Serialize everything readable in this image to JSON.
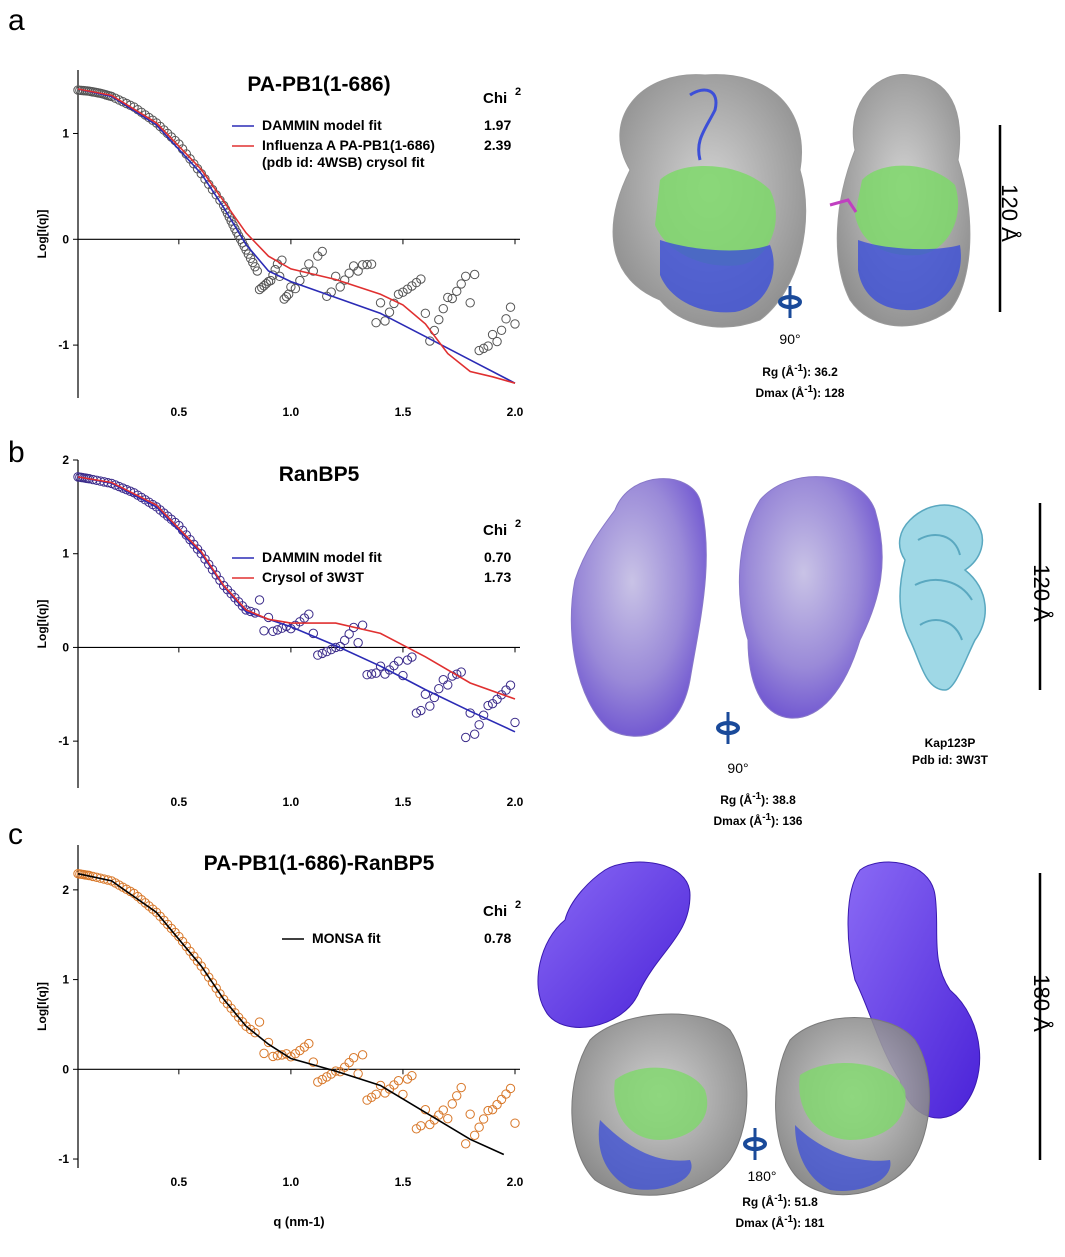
{
  "panels": [
    {
      "letter": "a",
      "title": "PA-PB1(1-686)",
      "chi_header": "Chi",
      "chi_sup": "2",
      "ylabel": "Log[I(q)]",
      "xlabel": "",
      "legend": [
        {
          "label": "DAMMIN model fit",
          "chi": "1.97",
          "color": "#2b2bb5"
        },
        {
          "label": "Influenza A PA-PB1(1-686)",
          "label2": "(pdb id: 4WSB) crysol fit",
          "chi": "2.39",
          "color": "#e03030"
        }
      ],
      "rotation": "90°",
      "rg_label": "Rg (Å",
      "rg_sup": "-1",
      "rg_value": "): 36.2",
      "dmax_label": "Dmax (Å",
      "dmax_sup": "-1",
      "dmax_value": "): 128",
      "scale": "120 Å"
    },
    {
      "letter": "b",
      "title": "RanBP5",
      "chi_header": "Chi",
      "chi_sup": "2",
      "ylabel": "Log[I(q)]",
      "xlabel": "",
      "legend": [
        {
          "label": "DAMMIN model fit",
          "chi": "0.70",
          "color": "#2b2bb5"
        },
        {
          "label": "Crysol of 3W3T",
          "chi": "1.73",
          "color": "#e03030"
        }
      ],
      "rotation": "90°",
      "rg_label": "Rg (Å",
      "rg_sup": "-1",
      "rg_value": "): 38.8",
      "dmax_label": "Dmax (Å",
      "dmax_sup": "-1",
      "dmax_value": "): 136",
      "scale": "120 Å",
      "struct_caption1": "Kap123P",
      "struct_caption2": "Pdb id: 3W3T"
    },
    {
      "letter": "c",
      "title": "PA-PB1(1-686)-RanBP5",
      "chi_header": "Chi",
      "chi_sup": "2",
      "ylabel": "Log[I(q)]",
      "xlabel": "q (nm-1)",
      "legend": [
        {
          "label": "MONSA fit",
          "chi": "0.78",
          "color": "#000000"
        }
      ],
      "rotation": "180°",
      "rg_label": "Rg (Å",
      "rg_sup": "-1",
      "rg_value": "): 51.8",
      "dmax_label": "Dmax (Å",
      "dmax_sup": "-1",
      "dmax_value": "): 181",
      "scale": "180 Å"
    }
  ],
  "chart_data": [
    {
      "type": "scatter",
      "title": "PA-PB1(1-686)",
      "xlabel": "",
      "ylabel": "Log[I(q)]",
      "xlim": [
        0.05,
        2.0
      ],
      "ylim": [
        -1.5,
        1.6
      ],
      "xticks": [
        "0.5",
        "1.0",
        "1.5",
        "2.0"
      ],
      "yticks": [
        "-1",
        "0",
        "1"
      ],
      "marker_color": "#555555",
      "series": [
        {
          "name": "DAMMIN model fit",
          "color": "#2b2bb5",
          "x": [
            0.05,
            0.2,
            0.4,
            0.6,
            0.7,
            0.8,
            0.9,
            1.0,
            1.2,
            1.4,
            1.6,
            1.8,
            2.0
          ],
          "y": [
            1.42,
            1.35,
            1.08,
            0.62,
            0.3,
            -0.05,
            -0.3,
            -0.4,
            -0.55,
            -0.7,
            -0.92,
            -1.14,
            -1.36
          ]
        },
        {
          "name": "Influenza A PA-PB1(1-686) (pdb id: 4WSB) crysol fit",
          "color": "#e03030",
          "x": [
            0.05,
            0.2,
            0.4,
            0.6,
            0.7,
            0.8,
            0.9,
            1.0,
            1.2,
            1.4,
            1.5,
            1.6,
            1.7,
            1.8,
            1.9,
            2.0
          ],
          "y": [
            1.42,
            1.36,
            1.1,
            0.66,
            0.36,
            0.06,
            -0.16,
            -0.28,
            -0.38,
            -0.52,
            -0.62,
            -0.8,
            -1.08,
            -1.25,
            -1.3,
            -1.36
          ]
        }
      ],
      "scatter": {
        "x": [
          0.05,
          0.1,
          0.15,
          0.2,
          0.3,
          0.4,
          0.5,
          0.6,
          0.7,
          0.75,
          0.8,
          0.85,
          0.9,
          0.95,
          1.0,
          1.1,
          1.2,
          1.3,
          1.4,
          1.5,
          1.6,
          1.7,
          1.8,
          1.9,
          2.0
        ],
        "y": [
          1.41,
          1.4,
          1.38,
          1.35,
          1.25,
          1.1,
          0.9,
          0.62,
          0.32,
          0.1,
          -0.1,
          -0.3,
          -0.4,
          -0.35,
          -0.45,
          -0.3,
          -0.35,
          -0.3,
          -0.6,
          -0.5,
          -0.7,
          -0.55,
          -0.6,
          -0.9,
          -0.8
        ]
      }
    },
    {
      "type": "scatter",
      "title": "RanBP5",
      "xlabel": "",
      "ylabel": "Log[I(q)]",
      "xlim": [
        0.05,
        2.0
      ],
      "ylim": [
        -1.5,
        2.0
      ],
      "xticks": [
        "0.5",
        "1.0",
        "1.5",
        "2.0"
      ],
      "yticks": [
        "-1",
        "0",
        "1",
        "2"
      ],
      "marker_color": "#3b2b8a",
      "series": [
        {
          "name": "DAMMIN model fit",
          "color": "#2b2bb5",
          "x": [
            0.05,
            0.2,
            0.4,
            0.6,
            0.7,
            0.8,
            0.9,
            1.0,
            1.2,
            1.4,
            1.6,
            1.8,
            2.0
          ],
          "y": [
            1.82,
            1.75,
            1.5,
            1.0,
            0.65,
            0.38,
            0.3,
            0.22,
            0.02,
            -0.2,
            -0.45,
            -0.68,
            -0.9
          ]
        },
        {
          "name": "Crysol of 3W3T",
          "color": "#e03030",
          "x": [
            0.05,
            0.2,
            0.4,
            0.6,
            0.7,
            0.8,
            0.9,
            1.0,
            1.2,
            1.4,
            1.6,
            1.8,
            2.0
          ],
          "y": [
            1.82,
            1.76,
            1.52,
            1.02,
            0.66,
            0.4,
            0.3,
            0.26,
            0.26,
            0.15,
            -0.1,
            -0.38,
            -0.55
          ]
        }
      ],
      "scatter": {
        "x": [
          0.05,
          0.1,
          0.2,
          0.3,
          0.4,
          0.5,
          0.6,
          0.7,
          0.8,
          0.9,
          1.0,
          1.1,
          1.2,
          1.3,
          1.4,
          1.5,
          1.6,
          1.7,
          1.8,
          1.9,
          2.0
        ],
        "y": [
          1.82,
          1.8,
          1.75,
          1.65,
          1.5,
          1.3,
          1.0,
          0.66,
          0.4,
          0.32,
          0.2,
          0.15,
          0.0,
          0.05,
          -0.2,
          -0.3,
          -0.5,
          -0.4,
          -0.7,
          -0.6,
          -0.8
        ]
      }
    },
    {
      "type": "scatter",
      "title": "PA-PB1(1-686)-RanBP5",
      "xlabel": "q (nm-1)",
      "ylabel": "Log[I(q)]",
      "xlim": [
        0.05,
        2.0
      ],
      "ylim": [
        -1.1,
        2.5
      ],
      "xticks": [
        "0.5",
        "1.0",
        "1.5",
        "2.0"
      ],
      "yticks": [
        "-1",
        "0",
        "1",
        "2"
      ],
      "marker_color": "#d8782a",
      "series": [
        {
          "name": "MONSA fit",
          "color": "#000000",
          "x": [
            0.05,
            0.2,
            0.4,
            0.6,
            0.7,
            0.8,
            0.9,
            1.0,
            1.2,
            1.4,
            1.6,
            1.8,
            1.95
          ],
          "y": [
            2.18,
            2.1,
            1.75,
            1.15,
            0.78,
            0.48,
            0.28,
            0.12,
            -0.02,
            -0.18,
            -0.48,
            -0.78,
            -0.95
          ]
        }
      ],
      "scatter": {
        "x": [
          0.05,
          0.1,
          0.2,
          0.3,
          0.4,
          0.5,
          0.6,
          0.7,
          0.8,
          0.9,
          1.0,
          1.1,
          1.2,
          1.3,
          1.4,
          1.5,
          1.6,
          1.7,
          1.8,
          1.9,
          2.0
        ],
        "y": [
          2.18,
          2.16,
          2.1,
          1.96,
          1.75,
          1.48,
          1.15,
          0.78,
          0.48,
          0.3,
          0.14,
          0.08,
          -0.02,
          -0.05,
          -0.18,
          -0.28,
          -0.45,
          -0.55,
          -0.5,
          -0.45,
          -0.6
        ]
      }
    }
  ]
}
